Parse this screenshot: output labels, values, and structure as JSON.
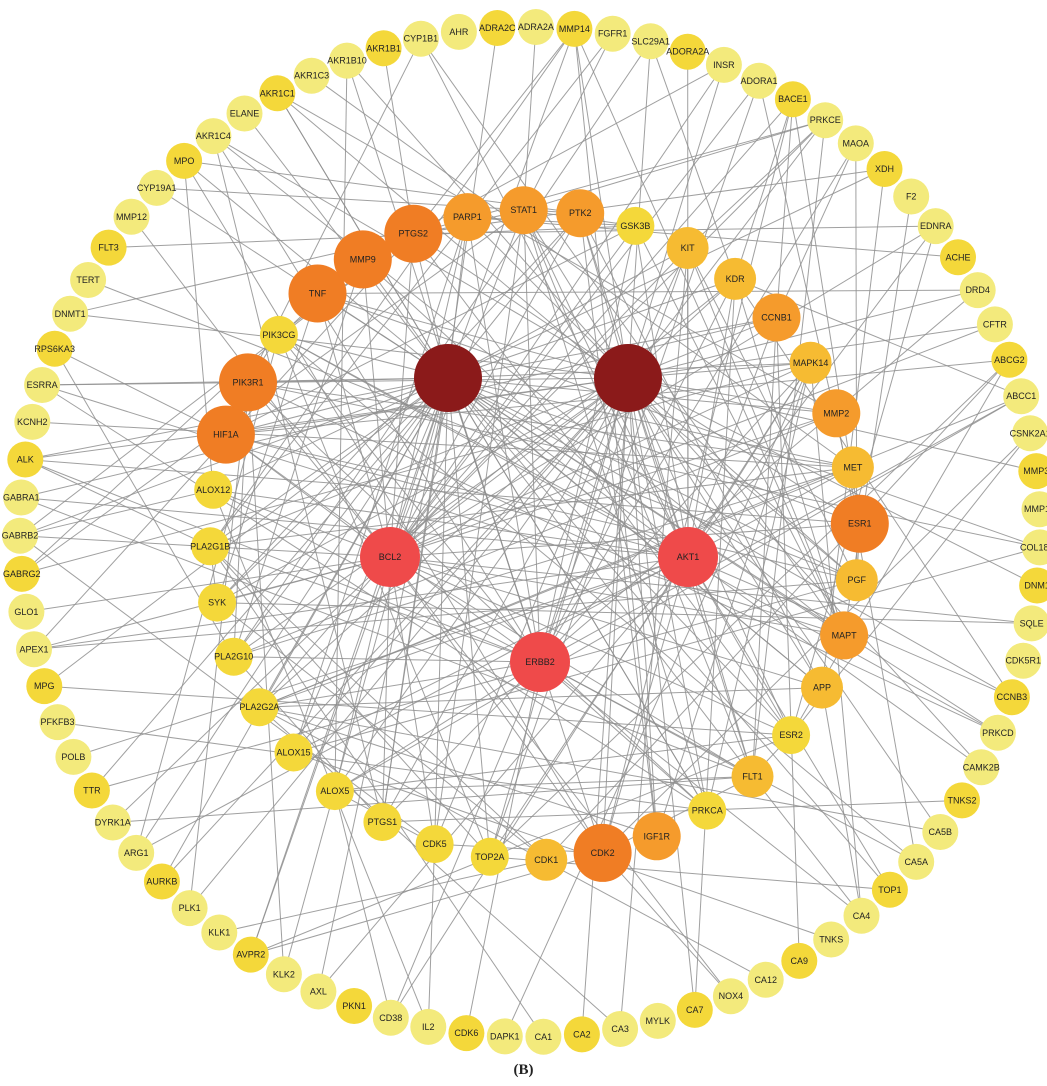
{
  "caption": "(B)",
  "colors": {
    "edge": "#8f8f8f",
    "hub": "#8b1a1a",
    "red": "#ef4a4a",
    "orange_dark": "#f07d24",
    "orange": "#f59b2c",
    "amber": "#f6bb32",
    "yellow": "#f4d83a",
    "yellow_light": "#f3ea7c"
  },
  "hubs": [
    {
      "label": "",
      "color": "hub"
    },
    {
      "label": "",
      "color": "hub"
    }
  ],
  "core": [
    "BCL2",
    "AKT1",
    "ERBB2"
  ],
  "inner": [
    {
      "label": "PIK3CG",
      "color": "yellow"
    },
    {
      "label": "TNF",
      "color": "orange_dark"
    },
    {
      "label": "MMP9",
      "color": "orange_dark"
    },
    {
      "label": "PTGS2",
      "color": "orange_dark"
    },
    {
      "label": "PARP1",
      "color": "orange"
    },
    {
      "label": "STAT1",
      "color": "orange"
    },
    {
      "label": "PTK2",
      "color": "orange"
    },
    {
      "label": "GSK3B",
      "color": "yellow"
    },
    {
      "label": "KIT",
      "color": "amber"
    },
    {
      "label": "KDR",
      "color": "amber"
    },
    {
      "label": "CCNB1",
      "color": "orange"
    },
    {
      "label": "MAPK14",
      "color": "amber"
    },
    {
      "label": "MMP2",
      "color": "orange"
    },
    {
      "label": "MET",
      "color": "amber"
    },
    {
      "label": "ESR1",
      "color": "orange_dark"
    },
    {
      "label": "PGF",
      "color": "amber"
    },
    {
      "label": "MAPT",
      "color": "orange"
    },
    {
      "label": "APP",
      "color": "amber"
    },
    {
      "label": "ESR2",
      "color": "yellow"
    },
    {
      "label": "FLT1",
      "color": "amber"
    },
    {
      "label": "PRKCA",
      "color": "yellow"
    },
    {
      "label": "IGF1R",
      "color": "orange"
    },
    {
      "label": "CDK2",
      "color": "orange_dark"
    },
    {
      "label": "CDK1",
      "color": "amber"
    },
    {
      "label": "TOP2A",
      "color": "yellow"
    },
    {
      "label": "CDK5",
      "color": "yellow"
    },
    {
      "label": "PTGS1",
      "color": "yellow"
    },
    {
      "label": "ALOX5",
      "color": "yellow"
    },
    {
      "label": "ALOX15",
      "color": "yellow"
    },
    {
      "label": "PLA2G2A",
      "color": "yellow"
    },
    {
      "label": "PLA2G10",
      "color": "yellow"
    },
    {
      "label": "SYK",
      "color": "yellow"
    },
    {
      "label": "PLA2G1B",
      "color": "yellow"
    },
    {
      "label": "ALOX12",
      "color": "yellow"
    },
    {
      "label": "HIF1A",
      "color": "orange_dark"
    },
    {
      "label": "PIK3R1",
      "color": "orange_dark"
    }
  ],
  "outer": [
    "MMP14",
    "FGFR1",
    "SLC29A1",
    "ADORA2A",
    "INSR",
    "ADORA1",
    "BACE1",
    "PRKCE",
    "MAOA",
    "XDH",
    "F2",
    "EDNRA",
    "ACHE",
    "DRD4",
    "CFTR",
    "ABCG2",
    "ABCC1",
    "CSNK2A1",
    "MMP3",
    "MMP13",
    "COL18A1",
    "DNM1",
    "SQLE",
    "CDK5R1",
    "CCNB3",
    "PRKCD",
    "CAMK2B",
    "TNKS2",
    "CA5B",
    "CA5A",
    "TOP1",
    "CA4",
    "TNKS",
    "CA9",
    "CA12",
    "NOX4",
    "CA7",
    "MYLK",
    "CA3",
    "CA2",
    "CA1",
    "DAPK1",
    "CDK6",
    "IL2",
    "CD38",
    "PKN1",
    "AXL",
    "KLK2",
    "AVPR2",
    "KLK1",
    "PLK1",
    "AURKB",
    "ARG1",
    "DYRK1A",
    "TTR",
    "POLB",
    "PFKFB3",
    "MPG",
    "APEX1",
    "GLO1",
    "GABRG2",
    "GABRB2",
    "GABRA1",
    "ALK",
    "KCNH2",
    "ESRRA",
    "RPS6KA3",
    "DNMT1",
    "TERT",
    "FLT3",
    "MMP12",
    "CYP19A1",
    "MPO",
    "AKR1C4",
    "ELANE",
    "AKR1C1",
    "AKR1C3",
    "AKR1B10",
    "AKR1B1",
    "CYP1B1",
    "AHR",
    "ADRA2C",
    "ADRA2A"
  ]
}
